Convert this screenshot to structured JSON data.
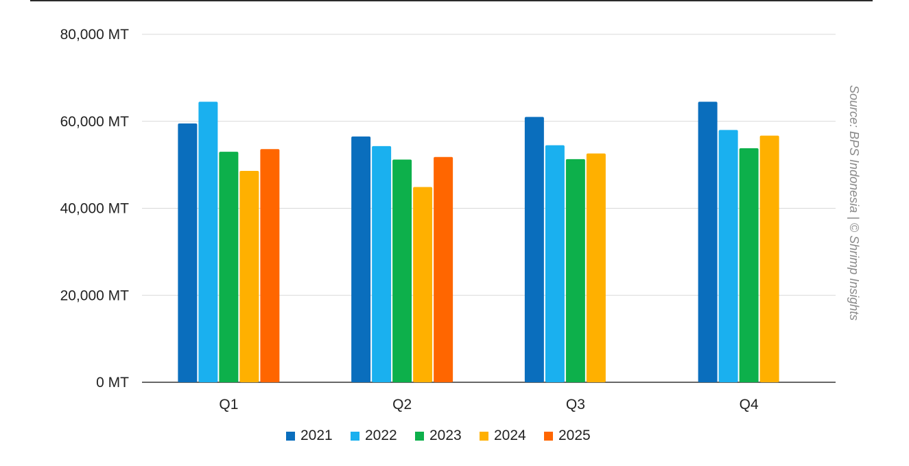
{
  "chart_data": {
    "type": "bar",
    "title": "",
    "xlabel": "",
    "ylabel": "",
    "categories": [
      "Q1",
      "Q2",
      "Q3",
      "Q4"
    ],
    "ylim": [
      0,
      80000
    ],
    "yticks": [
      0,
      20000,
      40000,
      60000,
      80000
    ],
    "ytick_labels": [
      "0 MT",
      "20,000 MT",
      "40,000 MT",
      "60,000 MT",
      "80,000 MT"
    ],
    "grid": true,
    "legend_position": "bottom",
    "series": [
      {
        "name": "2021",
        "color": "#0a6ebd",
        "values": [
          59500,
          56500,
          61000,
          64500
        ]
      },
      {
        "name": "2022",
        "color": "#1ab0ef",
        "values": [
          64500,
          54300,
          54500,
          58000
        ]
      },
      {
        "name": "2023",
        "color": "#0db04b",
        "values": [
          53000,
          51200,
          51300,
          53800
        ]
      },
      {
        "name": "2024",
        "color": "#ffb000",
        "values": [
          48600,
          44900,
          52600,
          56700
        ]
      },
      {
        "name": "2025",
        "color": "#ff6600",
        "values": [
          53600,
          51800,
          null,
          null
        ]
      }
    ],
    "annotation": "Source: BPS Indonesia | © Shrimp Insights"
  }
}
